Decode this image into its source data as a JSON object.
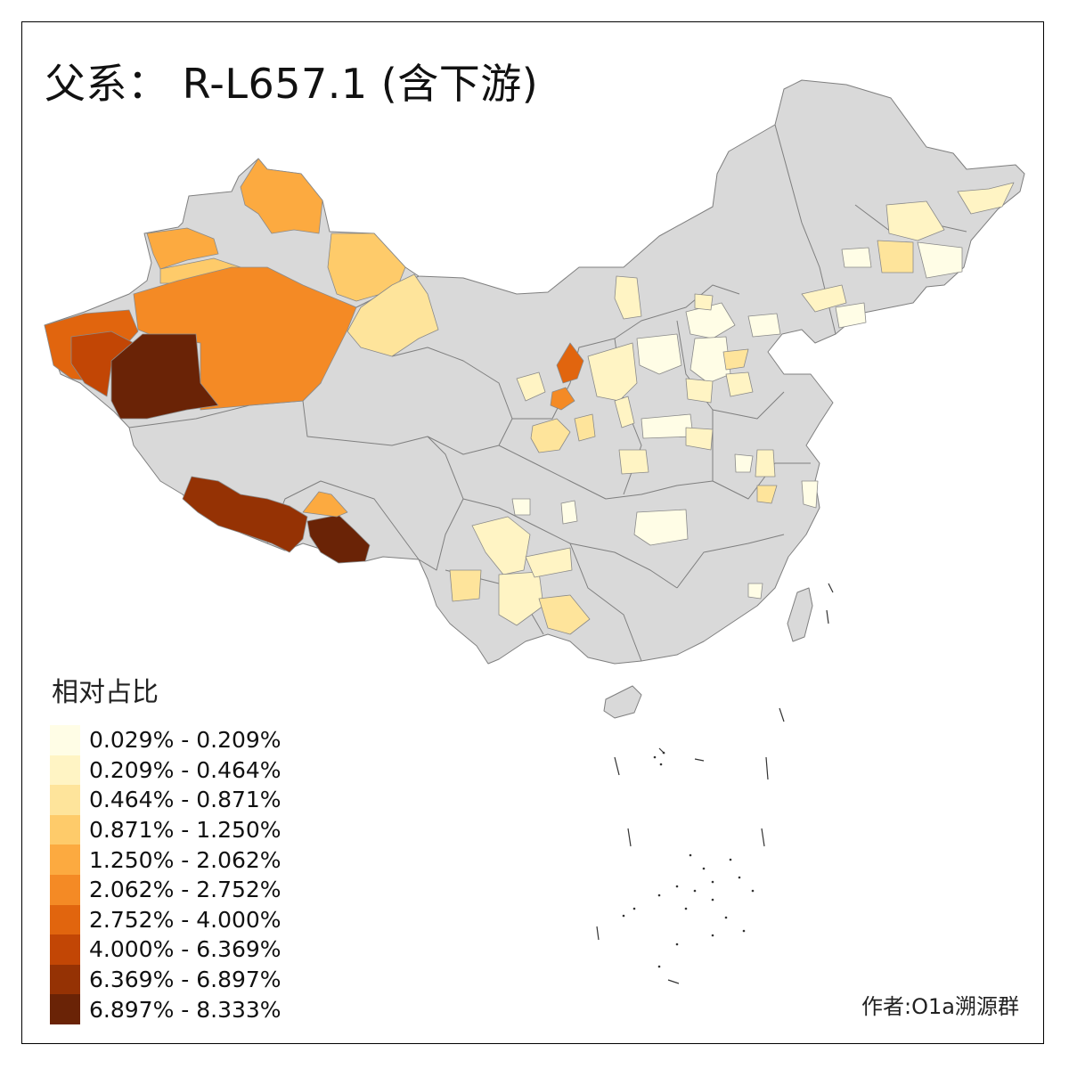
{
  "title": "父系： R-L657.1 (含下游)",
  "legend": {
    "title": "相对占比",
    "items": [
      {
        "label": "0.029% - 0.209%",
        "color": "#fffde6"
      },
      {
        "label": "0.209% - 0.464%",
        "color": "#fff4c4"
      },
      {
        "label": "0.464% - 0.871%",
        "color": "#fee49b"
      },
      {
        "label": "0.871% - 1.250%",
        "color": "#fecb6a"
      },
      {
        "label": "1.250% - 2.062%",
        "color": "#fcaa40"
      },
      {
        "label": "2.062% - 2.752%",
        "color": "#f48a25"
      },
      {
        "label": "2.752% - 4.000%",
        "color": "#e1650e"
      },
      {
        "label": "4.000% - 6.369%",
        "color": "#c24605"
      },
      {
        "label": "6.369% - 6.897%",
        "color": "#953204"
      },
      {
        "label": "6.897% - 8.333%",
        "color": "#6a2306"
      }
    ]
  },
  "author": "作者:O1a溯源群",
  "colors": {
    "no_data": "#d9d9d9",
    "border": "#7f7f7f"
  }
}
